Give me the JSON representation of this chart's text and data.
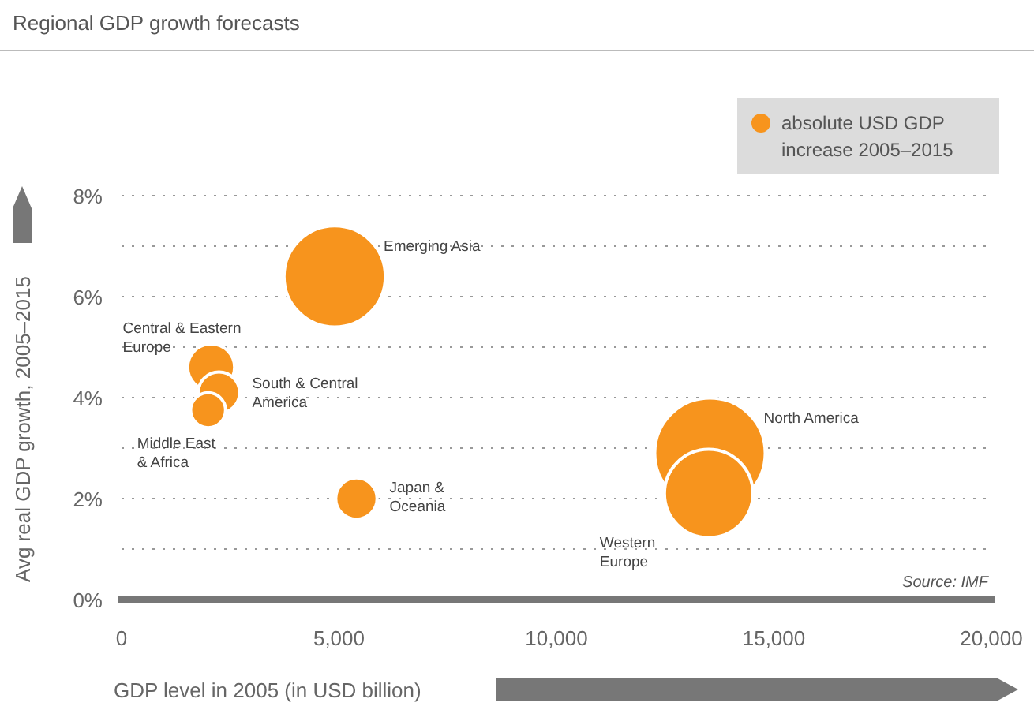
{
  "chart_data": {
    "type": "bubble",
    "title": "Regional GDP growth forecasts",
    "xlabel": "GDP level in 2005 (in USD billion)",
    "ylabel": "Avg real GDP growth, 2005–2015",
    "series": [
      {
        "name": "absolute USD GDP\nincrease 2005–2015",
        "color": "#f7941d",
        "x": [
          4900,
          2060,
          2240,
          1990,
          5400,
          13530,
          13500
        ],
        "values": [
          6.4,
          4.6,
          4.1,
          3.75,
          2.0,
          2.9,
          2.1
        ],
        "sizes": [
          0.84,
          0.18,
          0.14,
          0.1,
          0.14,
          1,
          0.64
        ]
      }
    ],
    "xlim": [
      0,
      20000
    ],
    "xticks": [
      {
        "value": 0,
        "label": "0"
      },
      {
        "value": 5000,
        "label": "5,000"
      },
      {
        "value": 10000,
        "label": "10,000"
      },
      {
        "value": 15000,
        "label": "15,000"
      },
      {
        "value": 20000,
        "label": "20,000"
      }
    ],
    "ylim": [
      0,
      8
    ],
    "yticks": [
      {
        "value": 0,
        "label": "0%"
      },
      {
        "value": 1,
        "label": null
      },
      {
        "value": 2,
        "label": "2%"
      },
      {
        "value": 3,
        "label": null
      },
      {
        "value": 4,
        "label": "4%"
      },
      {
        "value": 5,
        "label": null
      },
      {
        "value": 6,
        "label": "6%"
      },
      {
        "value": 7,
        "label": null
      },
      {
        "value": 8,
        "label": "8%"
      }
    ],
    "grid": "y",
    "legend": "top right",
    "annotations": [
      "Emerging Asia",
      "Central & Eastern\nEurope",
      "South & Central\nAmerica",
      "Middle East\n& Africa",
      "Japan &\nOceania",
      "North America",
      "Western\nEurope",
      "Source: IMF"
    ]
  }
}
